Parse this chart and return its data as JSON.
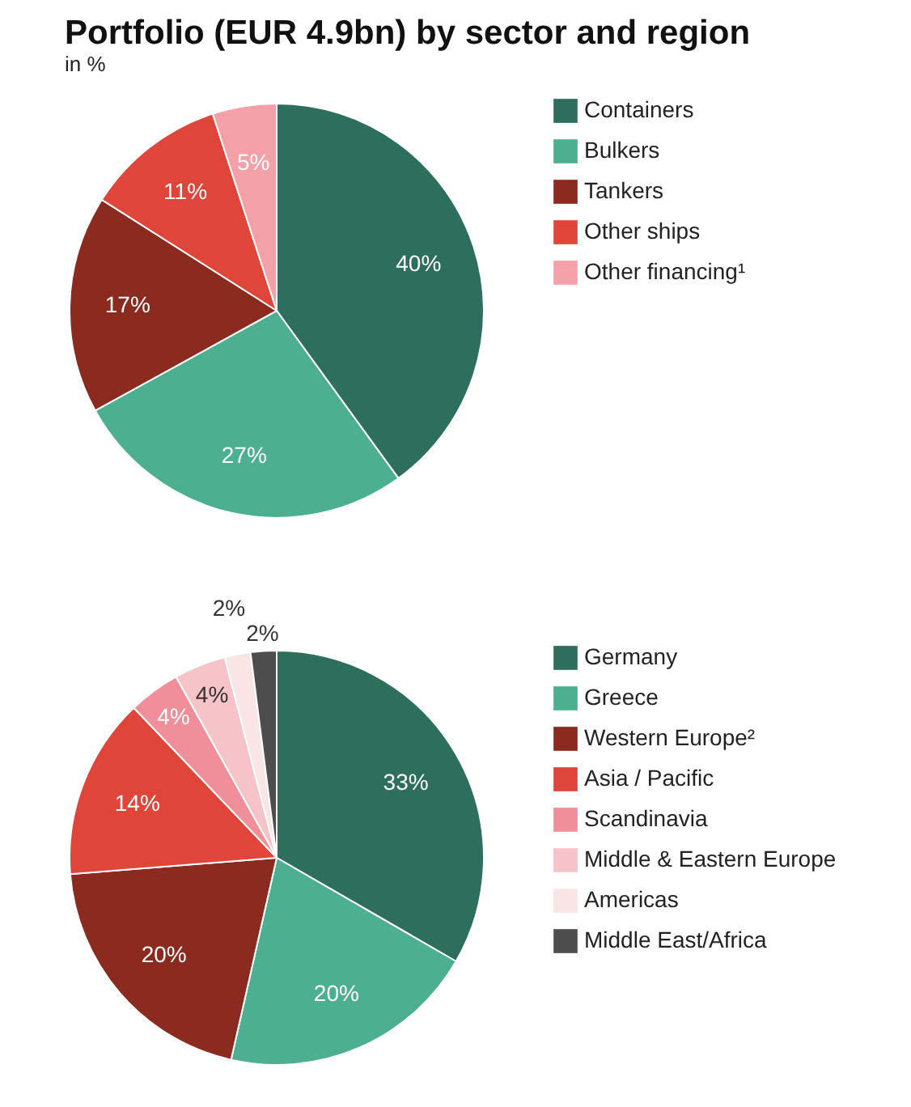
{
  "chart_data": [
    {
      "type": "pie",
      "title": "Portfolio (EUR 4.9bn) by sector and region",
      "subtitle": "in %",
      "legend": "right",
      "categories": [
        "Containers",
        "Bulkers",
        "Tankers",
        "Other ships",
        "Other financing¹"
      ],
      "values": [
        40,
        27,
        17,
        11,
        5
      ],
      "value_labels": [
        "40%",
        "27%",
        "17%",
        "11%",
        "5%"
      ],
      "colors": [
        "#2e6e5c",
        "#4caf8f",
        "#8b2a1e",
        "#e0453a",
        "#f4a0a8"
      ]
    },
    {
      "type": "pie",
      "legend": "right",
      "categories": [
        "Germany",
        "Greece",
        "Western Europe²",
        "Asia / Pacific",
        "Scandinavia",
        "Middle & Eastern Europe",
        "Americas",
        "Middle East/Africa"
      ],
      "values": [
        33,
        20,
        20,
        14,
        4,
        4,
        2,
        2
      ],
      "value_labels": [
        "33%",
        "20%",
        "20%",
        "14%",
        "4%",
        "4%",
        "2%",
        "2%"
      ],
      "colors": [
        "#2e6e5c",
        "#4caf8f",
        "#8b2a1e",
        "#e0453a",
        "#f08f9a",
        "#f5c3c8",
        "#f9e4e6",
        "#4d4d4d"
      ]
    }
  ]
}
